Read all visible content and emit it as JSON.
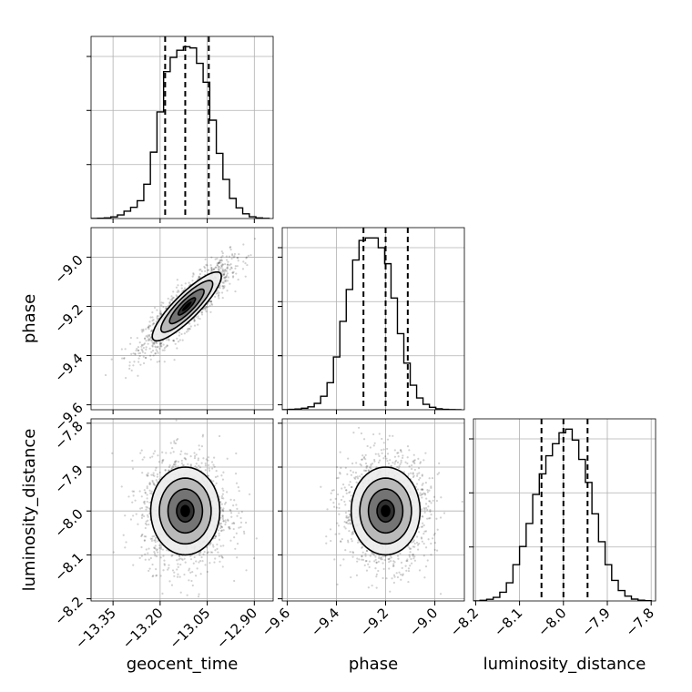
{
  "chart_data": {
    "type": "corner",
    "parameters": [
      "geocent_time",
      "phase",
      "luminosity_distance"
    ],
    "axis_labels": {
      "x": [
        "geocent_time",
        "phase",
        "luminosity_distance"
      ],
      "y": [
        "",
        "phase",
        "luminosity_distance"
      ]
    },
    "ranges": {
      "geocent_time": [
        -13.42,
        -12.84
      ],
      "phase": [
        -9.62,
        -8.88
      ],
      "luminosity_distance": [
        -8.205,
        -7.79
      ]
    },
    "ticks": {
      "geocent_time": [
        -13.35,
        -13.2,
        -13.05,
        -12.9
      ],
      "phase": [
        -9.6,
        -9.4,
        -9.2,
        -9.0
      ],
      "luminosity_distance": [
        -8.2,
        -8.1,
        -8.0,
        -7.9,
        -7.8
      ]
    },
    "tick_labels": {
      "geocent_time": [
        "−13.35",
        "−13.20",
        "−13.05",
        "−12.90"
      ],
      "phase": [
        "−9.6",
        "−9.4",
        "−9.2",
        "−9.0"
      ],
      "luminosity_distance": [
        "−8.2",
        "−8.1",
        "−8.0",
        "−7.9",
        "−7.8"
      ]
    },
    "quantiles": {
      "geocent_time": [
        -13.184,
        -13.12,
        -13.045
      ],
      "phase": [
        -9.29,
        -9.2,
        -9.11
      ],
      "luminosity_distance": [
        -8.05,
        -8.0,
        -7.945
      ]
    },
    "histograms": {
      "geocent_time": {
        "edges": [
          -13.42,
          -13.399,
          -13.378,
          -13.357,
          -13.336,
          -13.315,
          -13.294,
          -13.273,
          -13.252,
          -13.231,
          -13.21,
          -13.189,
          -13.168,
          -13.147,
          -13.126,
          -13.105,
          -13.084,
          -13.063,
          -13.042,
          -13.021,
          -13.0,
          -12.979,
          -12.958,
          -12.937,
          -12.916,
          -12.895,
          -12.874,
          -12.853
        ],
        "counts": [
          0,
          2,
          5,
          14,
          30,
          62,
          95,
          150,
          290,
          560,
          900,
          1240,
          1360,
          1420,
          1450,
          1440,
          1310,
          1150,
          830,
          550,
          330,
          170,
          90,
          40,
          15,
          5,
          1
        ]
      },
      "phase": {
        "edges": [
          -9.62,
          -9.594,
          -9.568,
          -9.542,
          -9.516,
          -9.49,
          -9.464,
          -9.438,
          -9.412,
          -9.386,
          -9.36,
          -9.334,
          -9.308,
          -9.282,
          -9.256,
          -9.23,
          -9.204,
          -9.178,
          -9.152,
          -9.126,
          -9.1,
          -9.074,
          -9.048,
          -9.022,
          -8.996,
          -8.97,
          -8.944,
          -8.918,
          -8.892
        ],
        "counts": [
          0,
          3,
          6,
          12,
          24,
          52,
          110,
          220,
          430,
          720,
          980,
          1220,
          1380,
          1400,
          1400,
          1320,
          1190,
          910,
          620,
          380,
          200,
          96,
          44,
          20,
          8,
          3,
          1,
          0
        ]
      },
      "luminosity_distance": {
        "edges": [
          -8.205,
          -8.19,
          -8.175,
          -8.16,
          -8.145,
          -8.13,
          -8.115,
          -8.1,
          -8.085,
          -8.07,
          -8.055,
          -8.04,
          -8.025,
          -8.01,
          -7.995,
          -7.98,
          -7.965,
          -7.95,
          -7.935,
          -7.92,
          -7.905,
          -7.89,
          -7.875,
          -7.86,
          -7.845,
          -7.83,
          -7.815,
          -7.8
        ],
        "counts": [
          0,
          5,
          14,
          30,
          72,
          150,
          300,
          450,
          640,
          880,
          1050,
          1200,
          1300,
          1390,
          1420,
          1330,
          1170,
          980,
          720,
          490,
          300,
          170,
          86,
          40,
          15,
          6,
          2
        ]
      }
    },
    "pairs": [
      {
        "x": "geocent_time",
        "y": "phase",
        "mean": [
          -13.115,
          -9.2
        ],
        "sd": [
          0.055,
          0.07
        ],
        "correlation": 0.87
      },
      {
        "x": "geocent_time",
        "y": "luminosity_distance",
        "mean": [
          -13.12,
          -8.0
        ],
        "sd": [
          0.055,
          0.05
        ],
        "correlation": 0.0
      },
      {
        "x": "phase",
        "y": "luminosity_distance",
        "mean": [
          -9.2,
          -8.0
        ],
        "sd": [
          0.07,
          0.05
        ],
        "correlation": 0.0
      }
    ],
    "contour_levels_sigma": [
      0.5,
      1.0,
      1.5,
      2.0
    ],
    "grid": true,
    "colors": {
      "line": "#000000",
      "grid": "#b0b0b0",
      "points": "#000000"
    }
  }
}
